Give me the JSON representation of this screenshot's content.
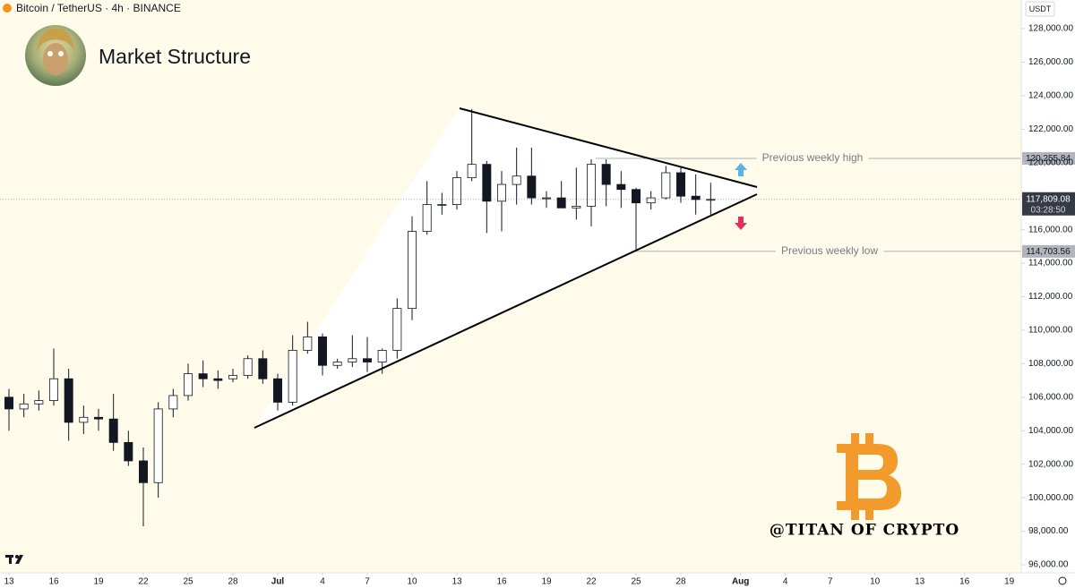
{
  "chart_data": {
    "type": "candlestick",
    "symbol": "Bitcoin / TetherUS · 4h · BINANCE",
    "title": "Market Structure",
    "currency": "USDT",
    "watermark": "@TITAN OF CRYPTO",
    "x": [
      0,
      1,
      2,
      3,
      4,
      5,
      6,
      7,
      8,
      9,
      10,
      11,
      12,
      13,
      14,
      15,
      16,
      17,
      18,
      19,
      20,
      21,
      22,
      23,
      24,
      25,
      26,
      27,
      28,
      29,
      30,
      31,
      32,
      33,
      34,
      35,
      36,
      37,
      38,
      39,
      40,
      41,
      42,
      43,
      44,
      45,
      46,
      47
    ],
    "open": [
      106000,
      105300,
      105600,
      105800,
      107100,
      104500,
      104800,
      104700,
      103300,
      102200,
      100900,
      105300,
      106100,
      107400,
      107100,
      107100,
      107300,
      108300,
      107100,
      105700,
      108800,
      109600,
      107900,
      108100,
      108300,
      108100,
      108800,
      111300,
      115900,
      117500,
      117500,
      119100,
      119900,
      117700,
      118700,
      119200,
      117900,
      117900,
      117300,
      117400,
      119900,
      118700,
      118400,
      117600,
      117900,
      119400,
      118000,
      117800
    ],
    "high": [
      106500,
      106200,
      106400,
      108900,
      107700,
      105500,
      105300,
      106200,
      104000,
      103000,
      105700,
      106500,
      108000,
      108200,
      107600,
      107700,
      108500,
      108800,
      107400,
      109700,
      110500,
      109800,
      108300,
      109700,
      109600,
      108900,
      111900,
      116800,
      118900,
      118200,
      119500,
      123200,
      120100,
      119500,
      120900,
      120900,
      118300,
      118900,
      119700,
      120200,
      120200,
      119500,
      118500,
      118300,
      119800,
      119800,
      119300,
      118800
    ],
    "low": [
      104000,
      104800,
      105200,
      105500,
      103400,
      103800,
      104000,
      102800,
      101900,
      98300,
      100000,
      104800,
      105800,
      106600,
      106500,
      106900,
      107100,
      106800,
      105200,
      105500,
      108600,
      107300,
      107700,
      107800,
      107500,
      107400,
      108300,
      110600,
      115700,
      116900,
      117200,
      118900,
      115800,
      115900,
      117500,
      117500,
      117300,
      117300,
      116600,
      116200,
      117400,
      117300,
      114700,
      117200,
      117800,
      117600,
      116900,
      116900
    ],
    "close": [
      105300,
      105600,
      105800,
      107100,
      104500,
      104800,
      104700,
      103300,
      102200,
      100900,
      105300,
      106100,
      107400,
      107100,
      107000,
      107300,
      108300,
      107100,
      105700,
      108800,
      109600,
      107900,
      108100,
      108300,
      108100,
      108800,
      111300,
      115900,
      117500,
      117500,
      119100,
      119900,
      117700,
      118700,
      119200,
      117900,
      117900,
      117300,
      117400,
      119900,
      118700,
      118400,
      117600,
      117900,
      119400,
      118000,
      117800,
      117809.08
    ],
    "xlim": [
      -0.6,
      67.8
    ],
    "xticks": [
      {
        "value": 0,
        "label": "13"
      },
      {
        "value": 3,
        "label": "16"
      },
      {
        "value": 6,
        "label": "19"
      },
      {
        "value": 9,
        "label": "22"
      },
      {
        "value": 12,
        "label": "25"
      },
      {
        "value": 15,
        "label": "28"
      },
      {
        "value": 18,
        "label": "Jul"
      },
      {
        "value": 21,
        "label": "4"
      },
      {
        "value": 24,
        "label": "7"
      },
      {
        "value": 27,
        "label": "10"
      },
      {
        "value": 30,
        "label": "13"
      },
      {
        "value": 33,
        "label": "16"
      },
      {
        "value": 36,
        "label": "19"
      },
      {
        "value": 39,
        "label": "22"
      },
      {
        "value": 42,
        "label": "25"
      },
      {
        "value": 45,
        "label": "28"
      },
      {
        "value": 49,
        "label": "Aug"
      },
      {
        "value": 52,
        "label": "4"
      },
      {
        "value": 55,
        "label": "7"
      },
      {
        "value": 58,
        "label": "10"
      },
      {
        "value": 61,
        "label": "13"
      },
      {
        "value": 64,
        "label": "16"
      },
      {
        "value": 67,
        "label": "19"
      }
    ],
    "ylim": [
      95520,
      129710
    ],
    "yticks": [
      {
        "value": 96000,
        "label": "96,000.00"
      },
      {
        "value": 98000,
        "label": "98,000.00"
      },
      {
        "value": 100000,
        "label": "100,000.00"
      },
      {
        "value": 102000,
        "label": "102,000.00"
      },
      {
        "value": 104000,
        "label": "104,000.00"
      },
      {
        "value": 106000,
        "label": "106,000.00"
      },
      {
        "value": 108000,
        "label": "108,000.00"
      },
      {
        "value": 110000,
        "label": "110,000.00"
      },
      {
        "value": 112000,
        "label": "112,000.00"
      },
      {
        "value": 114000,
        "label": "114,000.00"
      },
      {
        "value": 116000,
        "label": "116,000.00"
      },
      {
        "value": 118000,
        "label": "118,000.00"
      },
      {
        "value": 120000,
        "label": "120,000.00"
      },
      {
        "value": 122000,
        "label": "122,000.00"
      },
      {
        "value": 124000,
        "label": "124,000.00"
      },
      {
        "value": 126000,
        "label": "126,000.00"
      },
      {
        "value": 128000,
        "label": "128,000.00"
      }
    ],
    "trendlines": [
      {
        "x": [
          30.18,
          50.1
        ],
        "y": [
          123246,
          118545
        ]
      },
      {
        "x": [
          16.44,
          50.1
        ],
        "y": [
          104175,
          118117
        ]
      }
    ],
    "levels": [
      {
        "name": "Previous weekly high",
        "value": 120255.84,
        "value_label": "120,255.84",
        "x_start": 39.3
      },
      {
        "name": "Previous weekly low",
        "value": 114703.56,
        "value_label": "114,703.56",
        "x_start": 41.9
      }
    ],
    "last_price": {
      "value": 117809.08,
      "value_label": "117,809.08",
      "countdown": "03:28:50"
    }
  }
}
